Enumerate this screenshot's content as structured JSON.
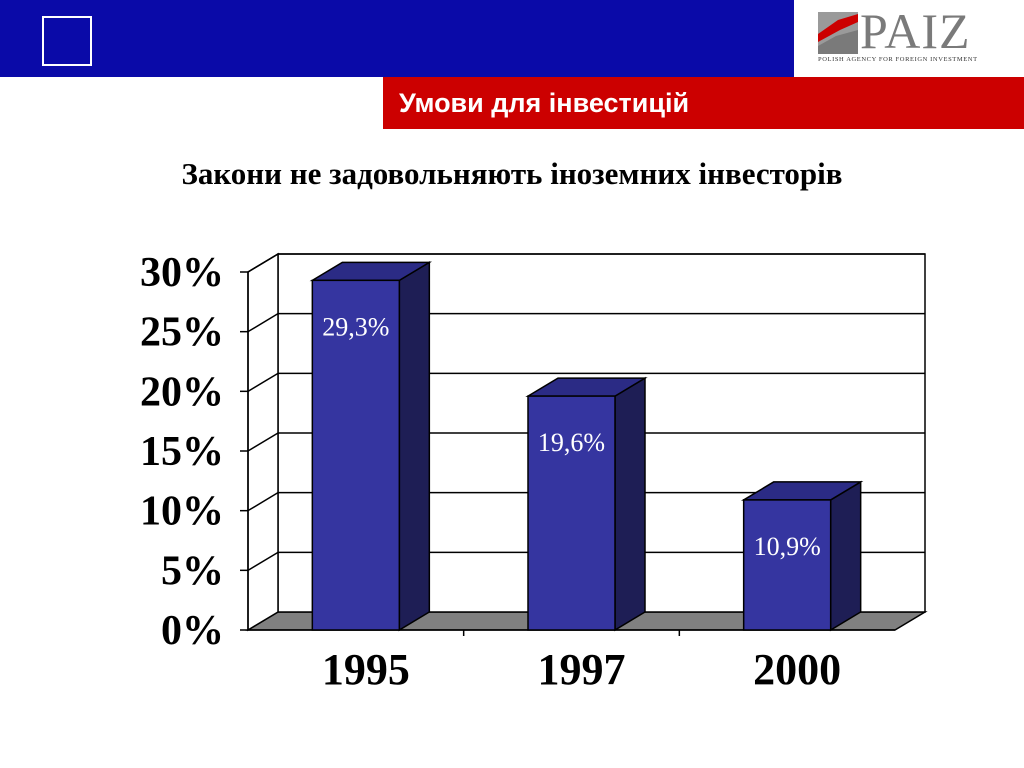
{
  "header": {
    "logo_text": "PAIZ",
    "logo_subtitle": "POLISH AGENCY FOR FOREIGN INVESTMENT",
    "section_title": "Умови для інвестицій"
  },
  "colors": {
    "header_blue": "#0a0aa8",
    "band_red": "#cc0000",
    "bar_front": "#3535a0",
    "bar_side": "#1e1e55",
    "bar_top": "#2b2b85",
    "floor": "#808080"
  },
  "chart_data": {
    "type": "bar",
    "title": "Закони не задовольняють іноземних інвесторів",
    "categories": [
      "1995",
      "1997",
      "2000"
    ],
    "values": [
      29.3,
      19.6,
      10.9
    ],
    "data_labels": [
      "29,3%",
      "19,6%",
      "10,9%"
    ],
    "yticks": [
      "0%",
      "5%",
      "10%",
      "15%",
      "20%",
      "25%",
      "30%"
    ],
    "ylim": [
      0,
      30
    ],
    "grid": true,
    "style": "3d"
  }
}
